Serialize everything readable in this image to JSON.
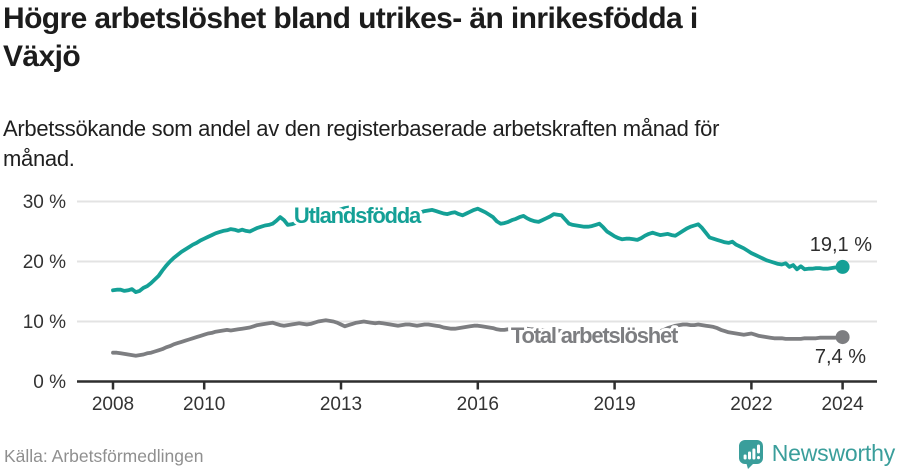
{
  "header": {
    "title_lines": [
      "Högre arbetslöshet bland utrikes- än inrikesfödda i",
      "Växjö"
    ],
    "subtitle_lines": [
      "Arbetssökande som andel av den registerbaserade arbetskraften månad för",
      "månad."
    ]
  },
  "footer": {
    "source": "Källa: Arbetsförmedlingen",
    "brand": "Newsworthy"
  },
  "colors": {
    "accent_teal": "#14a096",
    "line_gray": "#7d7e81",
    "brand_teal": "#3a9e9b",
    "axis_dark": "#2e2e2e",
    "gridline": "#e3e3e3"
  },
  "chart_data": {
    "type": "line",
    "title": "Högre arbetslöshet bland utrikes- än inrikesfödda i Växjö",
    "subtitle": "Arbetssökande som andel av den registerbaserade arbetskraften månad för månad.",
    "x_unit": "months",
    "x_start_year": 2008,
    "points_per_year": 12,
    "x_range": [
      "2008-01",
      "2024-01"
    ],
    "ylim": [
      0,
      31.5
    ],
    "grid": "horizontal",
    "legend_position": "inline-labels",
    "y_ticks": [
      {
        "value": 0,
        "label": "0 %"
      },
      {
        "value": 10,
        "label": "10 %"
      },
      {
        "value": 20,
        "label": "20 %"
      },
      {
        "value": 30,
        "label": "30 %"
      }
    ],
    "x_ticks": [
      {
        "year": 2008,
        "label": "2008"
      },
      {
        "year": 2010,
        "label": "2010"
      },
      {
        "year": 2013,
        "label": "2013"
      },
      {
        "year": 2016,
        "label": "2016"
      },
      {
        "year": 2019,
        "label": "2019"
      },
      {
        "year": 2022,
        "label": "2022"
      },
      {
        "year": 2024,
        "label": "2024"
      }
    ],
    "series": [
      {
        "name": "Utlandsfödda",
        "color": "#14a096",
        "end_label": "19,1 %",
        "end_value": 19.1,
        "values": [
          15.2,
          15.3,
          15.3,
          15.1,
          15.2,
          15.4,
          14.9,
          15.1,
          15.6,
          15.9,
          16.4,
          17.0,
          17.6,
          18.5,
          19.3,
          20.0,
          20.6,
          21.1,
          21.6,
          22.0,
          22.4,
          22.8,
          23.1,
          23.5,
          23.8,
          24.1,
          24.4,
          24.7,
          24.9,
          25.1,
          25.2,
          25.4,
          25.3,
          25.1,
          25.3,
          25.1,
          25.0,
          25.3,
          25.6,
          25.8,
          26.0,
          26.1,
          26.3,
          26.8,
          27.4,
          26.9,
          26.1,
          26.2,
          26.4,
          26.7,
          27.0,
          27.1,
          27.2,
          27.3,
          27.5,
          27.7,
          27.8,
          28.0,
          28.2,
          28.5,
          28.7,
          28.9,
          29.0,
          28.8,
          28.6,
          28.4,
          28.3,
          28.2,
          28.1,
          28.0,
          28.1,
          28.0,
          27.9,
          28.0,
          28.1,
          28.0,
          28.1,
          28.2,
          28.1,
          28.2,
          28.3,
          28.2,
          28.4,
          28.5,
          28.6,
          28.4,
          28.2,
          28.0,
          27.9,
          28.1,
          28.2,
          27.9,
          27.7,
          28.0,
          28.3,
          28.6,
          28.8,
          28.5,
          28.2,
          27.8,
          27.4,
          26.7,
          26.3,
          26.4,
          26.6,
          26.9,
          27.1,
          27.4,
          27.6,
          27.2,
          26.9,
          26.7,
          26.6,
          26.9,
          27.2,
          27.5,
          27.9,
          27.8,
          27.7,
          27.0,
          26.3,
          26.1,
          26.0,
          25.9,
          25.8,
          25.8,
          25.9,
          26.1,
          26.3,
          25.7,
          25.0,
          24.6,
          24.2,
          23.9,
          23.7,
          23.8,
          23.8,
          23.7,
          23.6,
          23.9,
          24.3,
          24.6,
          24.8,
          24.6,
          24.4,
          24.5,
          24.6,
          24.4,
          24.3,
          24.7,
          25.1,
          25.5,
          25.8,
          26.0,
          26.2,
          25.6,
          24.8,
          24.0,
          23.8,
          23.6,
          23.4,
          23.2,
          23.1,
          23.3,
          22.8,
          22.5,
          22.2,
          21.8,
          21.4,
          21.1,
          20.8,
          20.5,
          20.2,
          20.0,
          19.8,
          19.6,
          19.5,
          19.7,
          19.1,
          19.4,
          18.7,
          19.2,
          18.7,
          18.8,
          18.8,
          18.9,
          18.9,
          18.8,
          18.8,
          18.9,
          19.0,
          19.0,
          19.1
        ]
      },
      {
        "name": "Total arbetslöshet",
        "color": "#7d7e81",
        "end_label": "7,4 %",
        "end_value": 7.4,
        "values": [
          4.8,
          4.8,
          4.7,
          4.6,
          4.5,
          4.4,
          4.3,
          4.4,
          4.5,
          4.7,
          4.8,
          5.0,
          5.2,
          5.4,
          5.7,
          5.9,
          6.2,
          6.4,
          6.6,
          6.8,
          7.0,
          7.2,
          7.4,
          7.6,
          7.8,
          8.0,
          8.1,
          8.3,
          8.4,
          8.5,
          8.6,
          8.5,
          8.6,
          8.7,
          8.8,
          8.9,
          9.0,
          9.2,
          9.4,
          9.5,
          9.6,
          9.7,
          9.8,
          9.6,
          9.4,
          9.3,
          9.4,
          9.5,
          9.6,
          9.7,
          9.6,
          9.5,
          9.6,
          9.8,
          10.0,
          10.1,
          10.2,
          10.1,
          10.0,
          9.8,
          9.5,
          9.2,
          9.4,
          9.6,
          9.8,
          9.9,
          10.0,
          9.9,
          9.8,
          9.7,
          9.8,
          9.7,
          9.6,
          9.5,
          9.4,
          9.3,
          9.4,
          9.5,
          9.5,
          9.4,
          9.3,
          9.4,
          9.5,
          9.5,
          9.4,
          9.3,
          9.2,
          9.0,
          8.9,
          8.8,
          8.8,
          8.9,
          9.0,
          9.1,
          9.2,
          9.3,
          9.3,
          9.2,
          9.1,
          9.0,
          8.9,
          8.7,
          8.6,
          8.6,
          8.7,
          8.8,
          8.9,
          8.9,
          8.8,
          8.8,
          8.7,
          8.7,
          8.6,
          8.6,
          8.5,
          8.5,
          8.5,
          8.5,
          8.4,
          8.4,
          8.3,
          8.3,
          8.2,
          8.2,
          8.1,
          8.1,
          8.1,
          8.1,
          8.2,
          8.2,
          8.1,
          8.1,
          8.0,
          8.0,
          7.9,
          7.9,
          8.0,
          8.0,
          8.1,
          8.1,
          8.2,
          8.2,
          8.3,
          8.3,
          8.4,
          8.6,
          8.9,
          9.1,
          9.3,
          9.4,
          9.5,
          9.5,
          9.4,
          9.4,
          9.5,
          9.4,
          9.3,
          9.2,
          9.1,
          8.9,
          8.6,
          8.4,
          8.2,
          8.1,
          8.0,
          7.9,
          7.8,
          7.9,
          8.0,
          7.8,
          7.6,
          7.5,
          7.4,
          7.3,
          7.2,
          7.2,
          7.2,
          7.1,
          7.1,
          7.1,
          7.1,
          7.1,
          7.2,
          7.2,
          7.2,
          7.2,
          7.3,
          7.3,
          7.3,
          7.3,
          7.3,
          7.4,
          7.4
        ]
      }
    ]
  }
}
